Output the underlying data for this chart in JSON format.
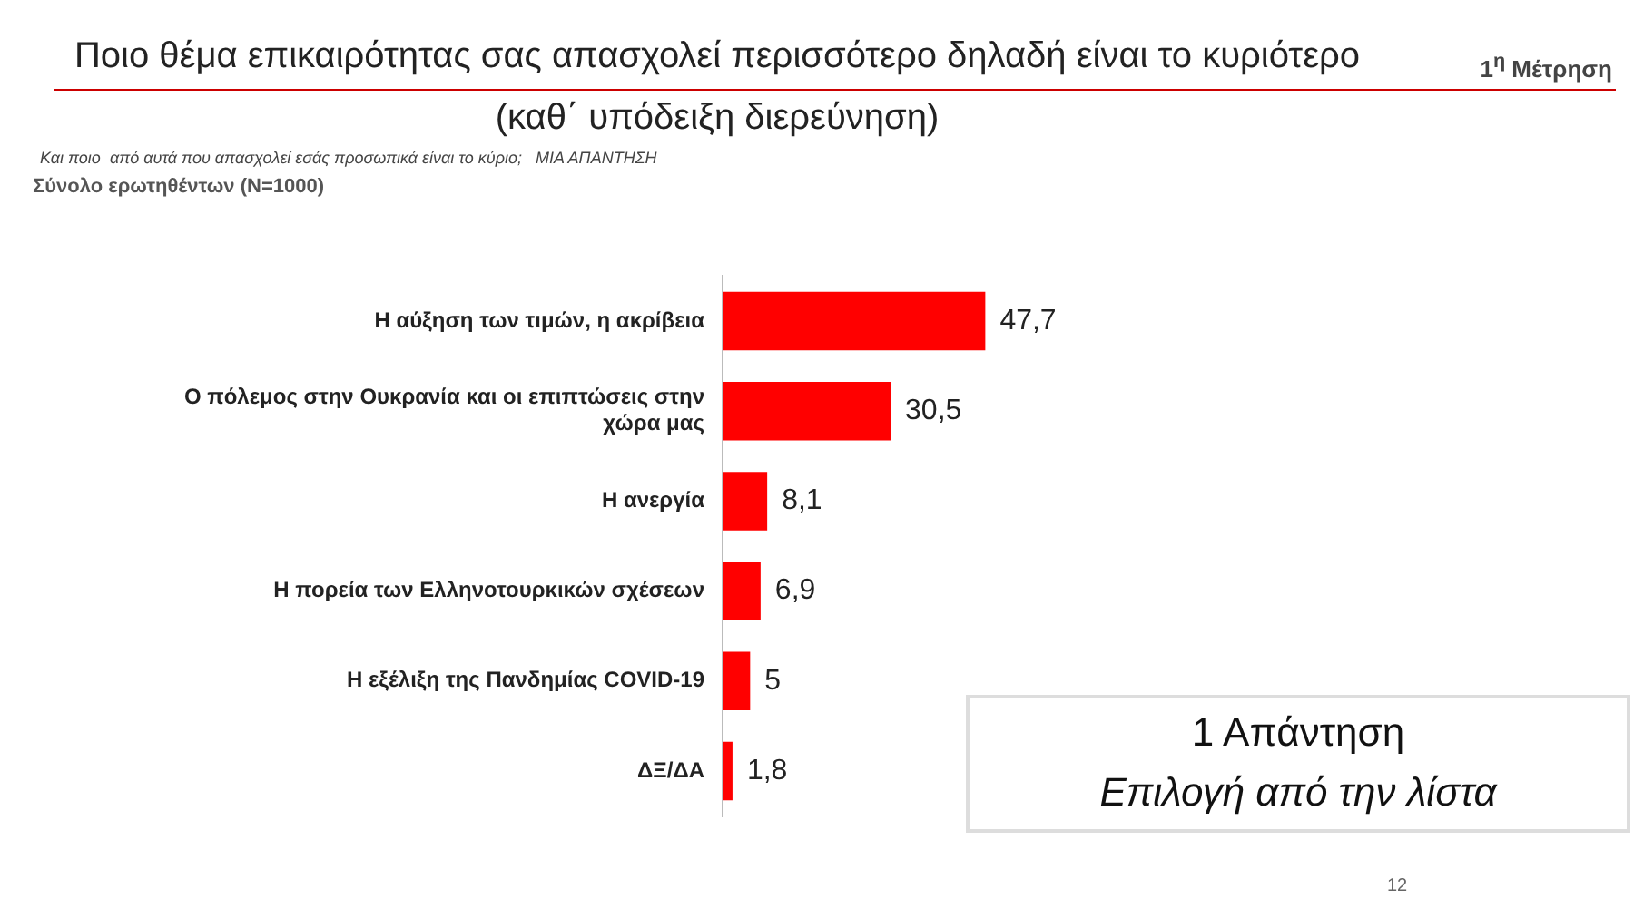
{
  "chart_data": {
    "type": "bar",
    "orientation": "horizontal",
    "title": "Ποιο θέμα επικαιρότητας σας απασχολεί περισσότερο δηλαδή είναι το κυριότερο",
    "subtitle": "(καθ΄ υπόδειξη διερεύνηση)",
    "categories": [
      "Η αύξηση των τιμών, η ακρίβεια",
      "Ο πόλεμος στην Ουκρανία και οι επιπτώσεις στην χώρα μας",
      "Η ανεργία",
      "Η πορεία των Ελληνοτουρκικών σχέσεων",
      "Η εξέλιξη της Πανδημίας COVID-19",
      "ΔΞ/ΔΑ"
    ],
    "values": [
      47.7,
      30.5,
      8.1,
      6.9,
      5,
      1.8
    ],
    "value_labels": [
      "47,7",
      "30,5",
      "8,1",
      "6,9",
      "5",
      "1,8"
    ],
    "color": "#ff0000",
    "legend": false,
    "tick_labels": "y",
    "annotations": [
      "1$^{η}$ Μέτρηση",
      "Και ποιο  από αυτά που απασχολεί εσάς προσωπικά είναι το κύριο;   ΜΙΑ ΑΠΑΝΤΗΣΗ",
      "Σύνολο ερωτηθέντων (N=1000)",
      "1 Απάντηση",
      "Επιλογή από την λίστα",
      "12"
    ]
  }
}
